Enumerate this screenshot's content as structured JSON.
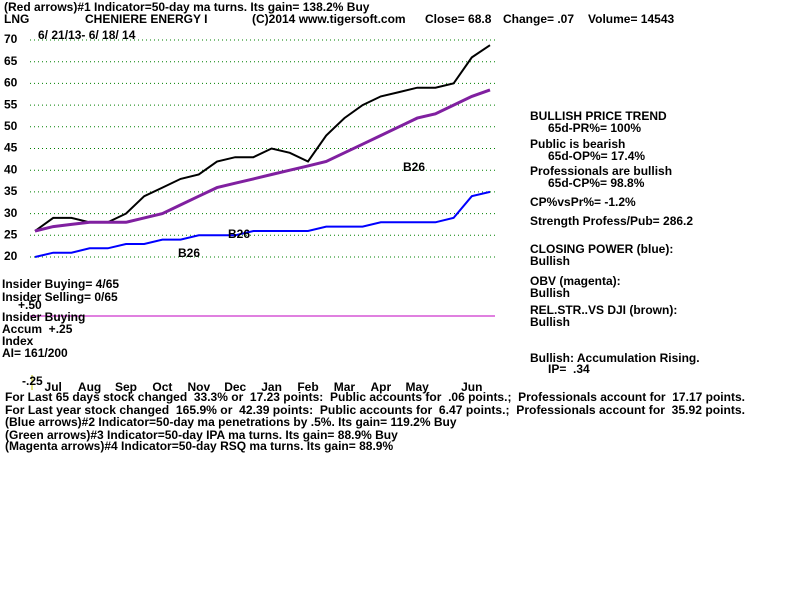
{
  "chart_data": {
    "type": "line",
    "title": "(Red arrows)#1 Indicator=50-day ma turns. Its gain= 138.2% Buy",
    "header_items": [
      "LNG",
      "CHENIERE ENERGY I",
      "(C)2014 www.tigersoft.com",
      "Close= 68.8",
      "Change= .07",
      "Volume= 14543"
    ],
    "categories": [
      null,
      "Jul",
      null,
      "Aug",
      null,
      "Sep",
      null,
      "Oct",
      null,
      "Nov",
      null,
      "Dec",
      null,
      "Jan",
      null,
      "Feb",
      null,
      "Mar",
      null,
      "Apr",
      null,
      "May",
      null,
      null,
      "Jun",
      null
    ],
    "series": [
      {
        "name": "Price",
        "color": "#000000",
        "values": [
          26,
          29,
          29,
          28,
          28,
          30,
          34,
          36,
          38,
          39,
          42,
          43,
          43,
          45,
          44,
          42,
          48,
          52,
          55,
          57,
          58,
          59,
          59,
          60,
          66,
          68.8
        ]
      },
      {
        "name": "50-day ma",
        "color": "#8020a0",
        "values": [
          26,
          27,
          27.5,
          28,
          28,
          28,
          29,
          30,
          32,
          34,
          36,
          37,
          38,
          39,
          40,
          41,
          42,
          44,
          46,
          48,
          50,
          52,
          53,
          55,
          57,
          58.5
        ]
      },
      {
        "name": "Closing Power",
        "color": "#0000ff",
        "values": [
          20,
          21,
          21,
          22,
          22,
          23,
          23,
          24,
          24,
          25,
          25,
          25,
          26,
          26,
          26,
          26,
          27,
          27,
          27,
          28,
          28,
          28,
          28,
          29,
          34,
          35
        ]
      }
    ],
    "ylim": [
      20,
      70
    ],
    "yticks": [
      20,
      25,
      30,
      35,
      40,
      45,
      50,
      55,
      60,
      65,
      70
    ],
    "grid": true,
    "annotations": [
      "6/ 21/13- 6/ 18/ 14",
      "B26",
      "B26",
      "B26",
      "Insider Buying= 4/65",
      "Insider Selling= 0/65",
      "+.50",
      "Insider Buying",
      "Accum  +.25",
      "Index",
      "AI= 161/200",
      "-.25",
      "BULLISH PRICE TREND",
      "65d-PR%= 100%",
      "Public is bearish",
      "65d-OP%= 17.4%",
      "Professionals are bullish",
      "65d-CP%= 98.8%",
      "CP%vsPr%= -1.2%",
      "Strength Profess/Pub= 286.2",
      "CLOSING POWER (blue):",
      "Bullish",
      "OBV (magenta):",
      "Bullish",
      "REL.STR..VS DJI (brown):",
      "Bullish",
      "Bullish: Accumulation Rising.",
      "IP=  .34",
      "For Last 65 days stock changed  33.3% or  17.23 points:  Public accounts for  .06 points.;  Professionals account for  17.17 points.",
      "For Last year stock changed  165.9% or  42.39 points:  Public accounts for  6.47 points.;  Professionals account for  35.92 points.",
      "(Blue arrows)#2 Indicator=50-day ma penetrations by .5%. Its gain= 119.2% Buy",
      "(Green arrows)#3 Indicator=50-day IPA ma turns. Its gain= 88.9% Buy",
      "(Magenta arrows)#4 Indicator=50-day RSQ ma turns. Its gain= 88.9%"
    ]
  }
}
